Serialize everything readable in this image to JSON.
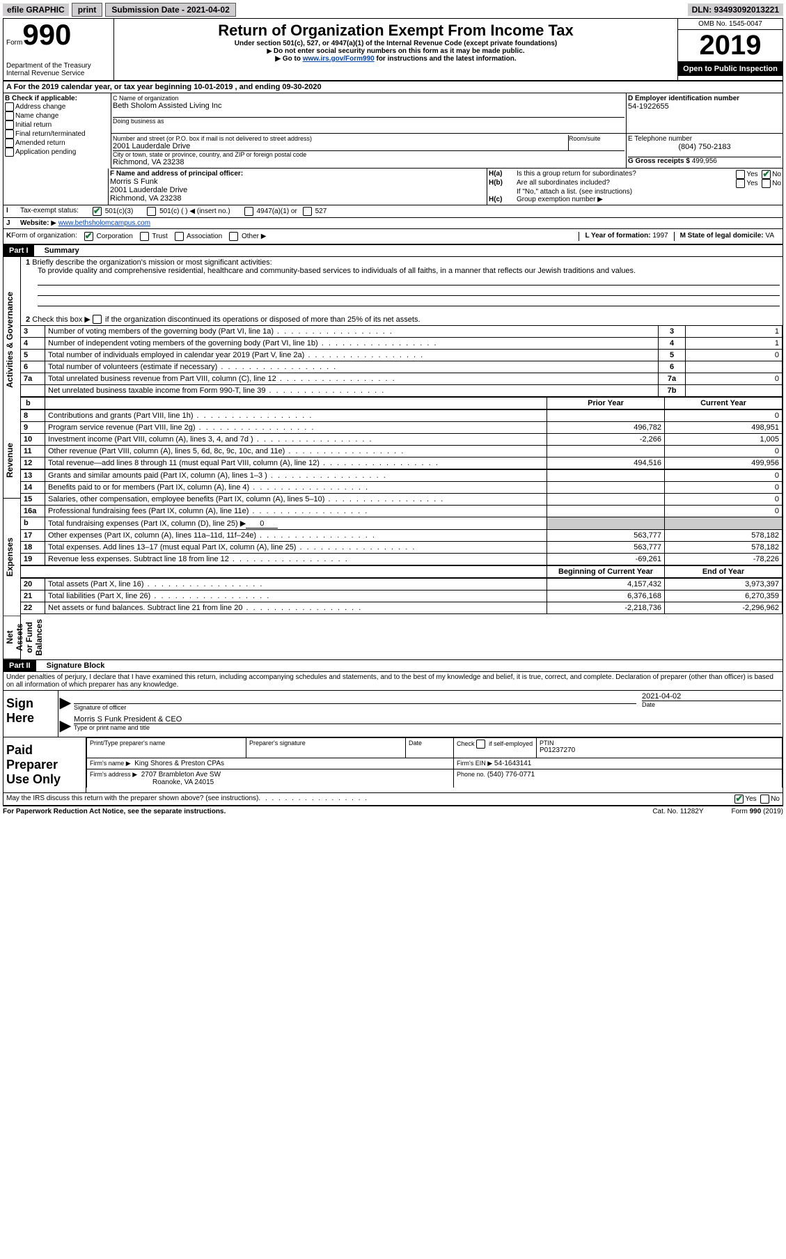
{
  "toolbar": {
    "efile_label": "efile GRAPHIC",
    "print_label": "print",
    "submission_label": "Submission Date - 2021-04-02",
    "dln_label": "DLN: 93493092013221"
  },
  "header": {
    "form_label": "Form",
    "form_number": "990",
    "title": "Return of Organization Exempt From Income Tax",
    "subtitle": "Under section 501(c), 527, or 4947(a)(1) of the Internal Revenue Code (except private foundations)",
    "note1": "Do not enter social security numbers on this form as it may be made public.",
    "note2_prefix": "Go to ",
    "note2_link": "www.irs.gov/Form990",
    "note2_suffix": " for instructions and the latest information.",
    "dept": "Department of the Treasury",
    "irs": "Internal Revenue Service",
    "omb": "OMB No. 1545-0047",
    "year": "2019",
    "inspection": "Open to Public Inspection"
  },
  "line_a": "For the 2019 calendar year, or tax year beginning 10-01-2019   , and ending 09-30-2020",
  "section_b": {
    "label": "B Check if applicable:",
    "items": [
      "Address change",
      "Name change",
      "Initial return",
      "Final return/terminated",
      "Amended return",
      "Application pending"
    ]
  },
  "section_c": {
    "label": "C Name of organization",
    "name": "Beth Sholom Assisted Living Inc",
    "dba_label": "Doing business as",
    "street_label": "Number and street (or P.O. box if mail is not delivered to street address)",
    "room_label": "Room/suite",
    "street": "2001 Lauderdale Drive",
    "city_label": "City or town, state or province, country, and ZIP or foreign postal code",
    "city": "Richmond, VA  23238"
  },
  "section_d": {
    "label": "D Employer identification number",
    "value": "54-1922655"
  },
  "section_e": {
    "label": "E Telephone number",
    "value": "(804) 750-2183"
  },
  "section_g": {
    "label": "G Gross receipts $",
    "value": "499,956"
  },
  "section_f": {
    "label": "F  Name and address of principal officer:",
    "name": "Morris S Funk",
    "street": "2001 Lauderdale Drive",
    "city": "Richmond, VA  23238"
  },
  "section_h": {
    "a_label": "Is this a group return for subordinates?",
    "b_label": "Are all subordinates included?",
    "b_note": "If \"No,\" attach a list. (see instructions)",
    "c_label": "Group exemption number",
    "yes": "Yes",
    "no": "No"
  },
  "section_i": {
    "label": "Tax-exempt status:",
    "opt1": "501(c)(3)",
    "opt2": "501(c) (   )",
    "opt2_note": "(insert no.)",
    "opt3": "4947(a)(1) or",
    "opt4": "527"
  },
  "section_j": {
    "label": "Website:",
    "value": "www.bethsholomcampus.com"
  },
  "section_k": {
    "label": "Form of organization:",
    "corp": "Corporation",
    "trust": "Trust",
    "assoc": "Association",
    "other": "Other"
  },
  "section_l": {
    "label": "L Year of formation:",
    "value": "1997"
  },
  "section_m": {
    "label": "M State of legal domicile:",
    "value": "VA"
  },
  "part1": {
    "header": "Part I",
    "title": "Summary",
    "line1_label": "Briefly describe the organization's mission or most significant activities:",
    "line1_text": "To provide quality and comprehensive residential, healthcare and community-based services to individuals of all faiths, in a manner that reflects our Jewish traditions and values.",
    "line2_label": "Check this box ▶",
    "line2_suffix": " if the organization discontinued its operations or disposed of more than 25% of its net assets.",
    "rows_a": [
      {
        "n": "3",
        "label": "Number of voting members of the governing body (Part VI, line 1a)",
        "box": "3",
        "val": "1"
      },
      {
        "n": "4",
        "label": "Number of independent voting members of the governing body (Part VI, line 1b)",
        "box": "4",
        "val": "1"
      },
      {
        "n": "5",
        "label": "Total number of individuals employed in calendar year 2019 (Part V, line 2a)",
        "box": "5",
        "val": "0"
      },
      {
        "n": "6",
        "label": "Total number of volunteers (estimate if necessary)",
        "box": "6",
        "val": ""
      },
      {
        "n": "7a",
        "label": "Total unrelated business revenue from Part VIII, column (C), line 12",
        "box": "7a",
        "val": "0"
      },
      {
        "n": "",
        "label": "Net unrelated business taxable income from Form 990-T, line 39",
        "box": "7b",
        "val": ""
      }
    ],
    "col_headers": {
      "prior": "Prior Year",
      "current": "Current Year"
    },
    "revenue_rows": [
      {
        "n": "8",
        "label": "Contributions and grants (Part VIII, line 1h)",
        "prior": "",
        "current": "0"
      },
      {
        "n": "9",
        "label": "Program service revenue (Part VIII, line 2g)",
        "prior": "496,782",
        "current": "498,951"
      },
      {
        "n": "10",
        "label": "Investment income (Part VIII, column (A), lines 3, 4, and 7d )",
        "prior": "-2,266",
        "current": "1,005"
      },
      {
        "n": "11",
        "label": "Other revenue (Part VIII, column (A), lines 5, 6d, 8c, 9c, 10c, and 11e)",
        "prior": "",
        "current": "0"
      },
      {
        "n": "12",
        "label": "Total revenue—add lines 8 through 11 (must equal Part VIII, column (A), line 12)",
        "prior": "494,516",
        "current": "499,956"
      }
    ],
    "expense_rows": [
      {
        "n": "13",
        "label": "Grants and similar amounts paid (Part IX, column (A), lines 1–3 )",
        "prior": "",
        "current": "0"
      },
      {
        "n": "14",
        "label": "Benefits paid to or for members (Part IX, column (A), line 4)",
        "prior": "",
        "current": "0"
      },
      {
        "n": "15",
        "label": "Salaries, other compensation, employee benefits (Part IX, column (A), lines 5–10)",
        "prior": "",
        "current": "0"
      },
      {
        "n": "16a",
        "label": "Professional fundraising fees (Part IX, column (A), line 11e)",
        "prior": "",
        "current": "0"
      },
      {
        "n": "b",
        "label": "Total fundraising expenses (Part IX, column (D), line 25) ▶",
        "prior": "__SHADE__",
        "current": "__SHADE__",
        "inline_val": "0"
      },
      {
        "n": "17",
        "label": "Other expenses (Part IX, column (A), lines 11a–11d, 11f–24e)",
        "prior": "563,777",
        "current": "578,182"
      },
      {
        "n": "18",
        "label": "Total expenses. Add lines 13–17 (must equal Part IX, column (A), line 25)",
        "prior": "563,777",
        "current": "578,182"
      },
      {
        "n": "19",
        "label": "Revenue less expenses. Subtract line 18 from line 12",
        "prior": "-69,261",
        "current": "-78,226"
      }
    ],
    "net_headers": {
      "begin": "Beginning of Current Year",
      "end": "End of Year"
    },
    "net_rows": [
      {
        "n": "20",
        "label": "Total assets (Part X, line 16)",
        "begin": "4,157,432",
        "end": "3,973,397"
      },
      {
        "n": "21",
        "label": "Total liabilities (Part X, line 26)",
        "begin": "6,376,168",
        "end": "6,270,359"
      },
      {
        "n": "22",
        "label": "Net assets or fund balances. Subtract line 21 from line 20",
        "begin": "-2,218,736",
        "end": "-2,296,962"
      }
    ]
  },
  "part2": {
    "header": "Part II",
    "title": "Signature Block",
    "penalty": "Under penalties of perjury, I declare that I have examined this return, including accompanying schedules and statements, and to the best of my knowledge and belief, it is true, correct, and complete. Declaration of preparer (other than officer) is based on all information of which preparer has any knowledge.",
    "sign_here": "Sign Here",
    "sig_officer": "Signature of officer",
    "sig_date_label": "Date",
    "sig_date": "2021-04-02",
    "sig_name": "Morris S Funk  President & CEO",
    "sig_name_label": "Type or print name and title",
    "paid": "Paid Preparer Use Only",
    "prep_name_label": "Print/Type preparer's name",
    "prep_sig_label": "Preparer's signature",
    "date_label": "Date",
    "check_label": "Check",
    "check_suffix": "if self-employed",
    "ptin_label": "PTIN",
    "ptin": "P01237270",
    "firm_name_label": "Firm's name   ▶",
    "firm_name": "King Shores & Preston CPAs",
    "firm_ein_label": "Firm's EIN ▶",
    "firm_ein": "54-1643141",
    "firm_addr_label": "Firm's address ▶",
    "firm_addr1": "2707 Brambleton Ave SW",
    "firm_addr2": "Roanoke, VA  24015",
    "phone_label": "Phone no.",
    "phone": "(540) 776-0771",
    "discuss": "May the IRS discuss this return with the preparer shown above? (see instructions)",
    "yes": "Yes",
    "no": "No"
  },
  "footer": {
    "pra": "For Paperwork Reduction Act Notice, see the separate instructions.",
    "cat": "Cat. No. 11282Y",
    "form": "Form 990 (2019)"
  }
}
